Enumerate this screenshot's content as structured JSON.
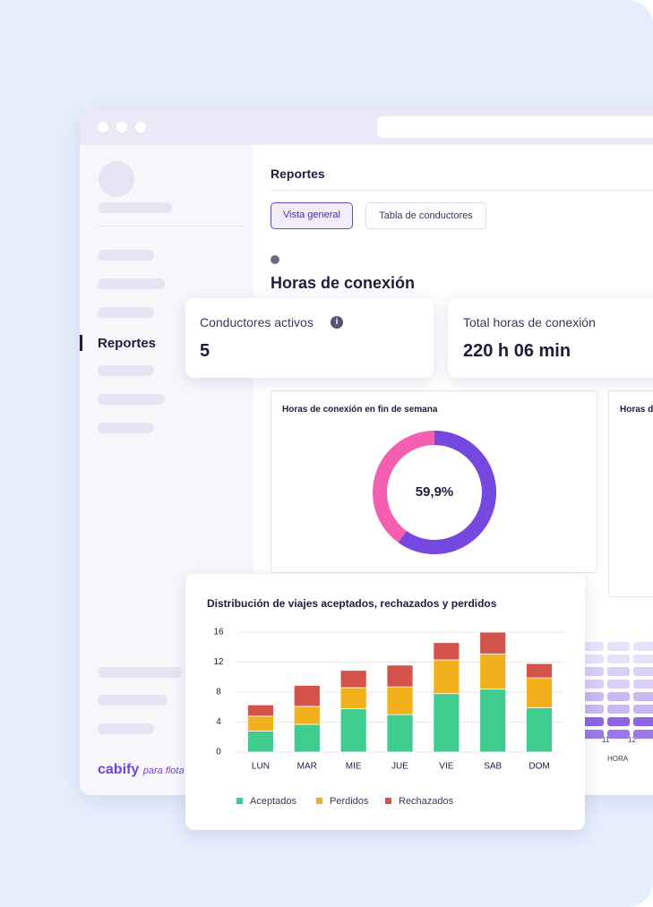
{
  "sidebar": {
    "active_item": "Reportes",
    "brand": "cabify",
    "brand_suffix": "para flota"
  },
  "header": {
    "title": "Reportes",
    "tabs": [
      "Vista general",
      "Tabla de conductores"
    ]
  },
  "section_title": "Horas de conexión",
  "stats": [
    {
      "label": "Conductores activos",
      "value": "5"
    },
    {
      "label": "Total horas de conexión",
      "value": "220 h 06 min"
    }
  ],
  "donut": {
    "type": "donut",
    "title": "Horas de conexión en fin de semana",
    "value": 59.9,
    "value_label": "59,9%",
    "color": "#7548df",
    "track_color": "#f45fb2"
  },
  "side_panel": {
    "title": "Horas de"
  },
  "heatmap": {
    "xticks": [
      "11",
      "12"
    ],
    "xlabel": "HORA"
  },
  "chart_data": {
    "type": "bar",
    "stacked": true,
    "title": "Distribución de viajes aceptados, rechazados y perdidos",
    "categories": [
      "LUN",
      "MAR",
      "MIE",
      "JUE",
      "VIE",
      "SAB",
      "DOM"
    ],
    "series": [
      {
        "name": "Aceptados",
        "color": "#40cc8f",
        "values": [
          2.8,
          3.7,
          5.8,
          5.0,
          7.8,
          8.4,
          5.9
        ]
      },
      {
        "name": "Perdidos",
        "color": "#f2b11c",
        "values": [
          2.0,
          2.4,
          2.8,
          3.7,
          4.5,
          4.7,
          4.0
        ]
      },
      {
        "name": "Rechazados",
        "color": "#d3534a",
        "values": [
          1.5,
          2.8,
          2.3,
          2.9,
          2.3,
          2.9,
          1.9
        ]
      }
    ],
    "ylim": [
      0,
      16
    ],
    "yticks": [
      0,
      4,
      8,
      12,
      16
    ],
    "grid": true
  }
}
